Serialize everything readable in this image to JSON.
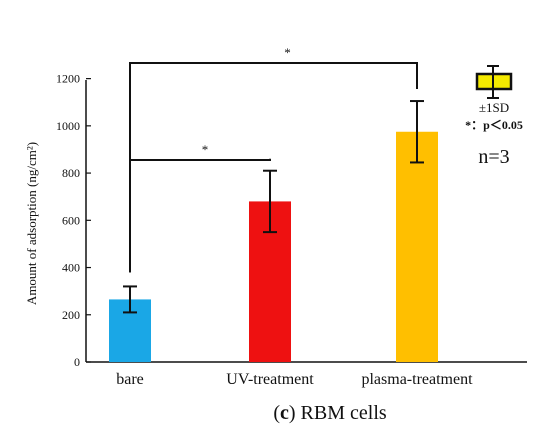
{
  "chart_data": {
    "type": "bar",
    "categories": [
      "bare",
      "UV-treatment",
      "plasma-treatment"
    ],
    "values": [
      265,
      680,
      975
    ],
    "errors": [
      55,
      130,
      130
    ],
    "colors": [
      "#1aa7e6",
      "#ee1111",
      "#ffbf00"
    ],
    "ylabel": "Amount of adsorption (ng/cm²)",
    "yticks": [
      0,
      200,
      400,
      600,
      800,
      1000,
      1200
    ],
    "ylim": [
      0,
      1300
    ],
    "significance": [
      {
        "from": "bare",
        "to": "UV-treatment",
        "label": "*"
      },
      {
        "from": "bare",
        "to": "plasma-treatment",
        "label": "*"
      }
    ],
    "legend": {
      "sd_label": "±1SD",
      "p_label": "*：p＜0.05",
      "n_label": "n=3",
      "swatch_color": "#f5ea00"
    },
    "caption_letter": "c",
    "caption_text": "RBM cells"
  }
}
